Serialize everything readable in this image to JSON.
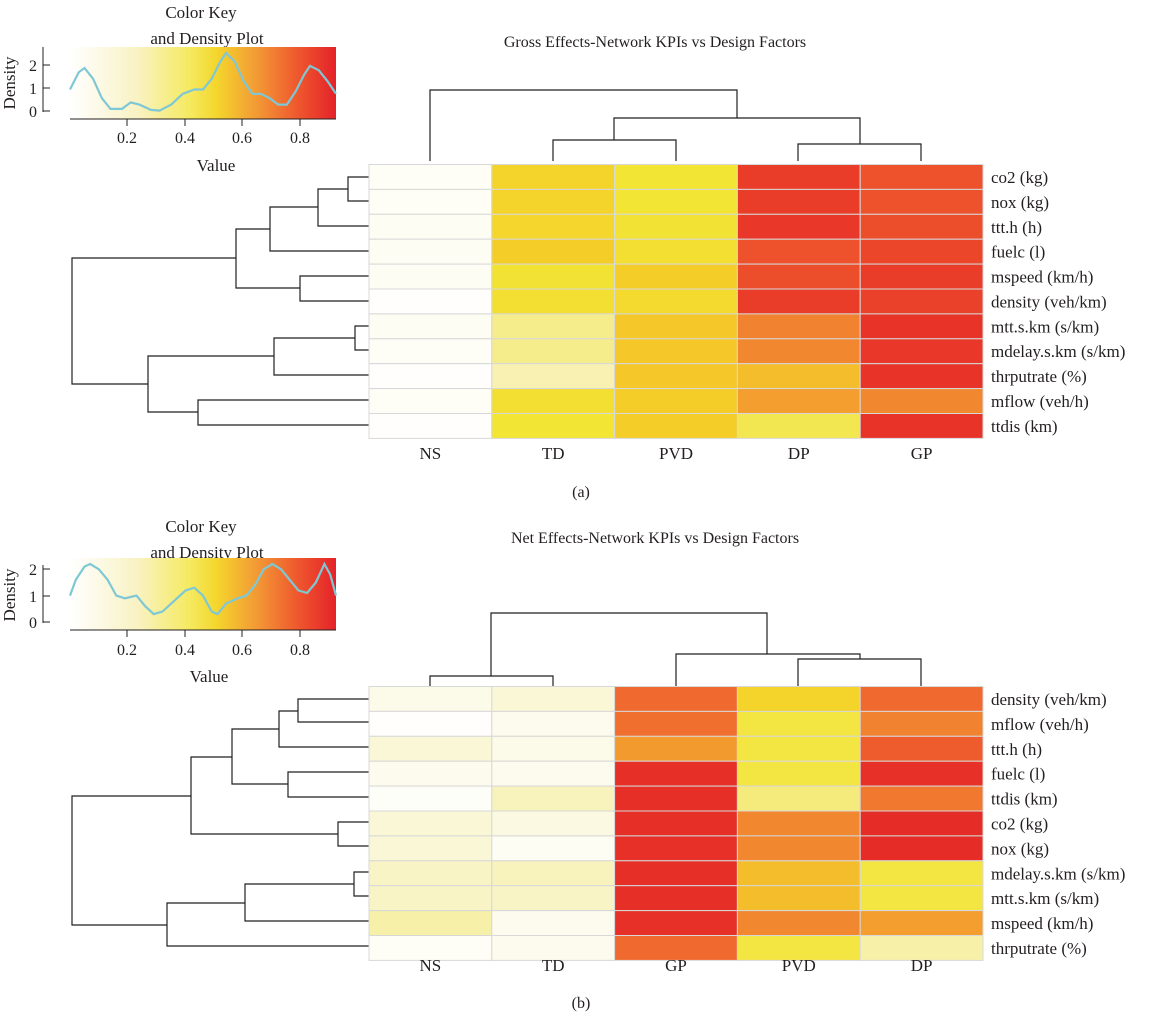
{
  "chart_data": [
    {
      "type": "heatmap",
      "title": "Gross Effects-Network KPIs vs Design Factors",
      "panel_label": "(a)",
      "columns": [
        "NS",
        "TD",
        "PVD",
        "DP",
        "GP"
      ],
      "rows": [
        "co2 (kg)",
        "nox (kg)",
        "ttt.h (h)",
        "fuelc (l)",
        "mspeed (km/h)",
        "density (veh/km)",
        "mtt.s.km (s/km)",
        "mdelay.s.km (s/km)",
        "thrputrate (%)",
        "mflow (veh/h)",
        "ttdis (km)"
      ],
      "values": [
        [
          0.03,
          0.48,
          0.42,
          0.84,
          0.79
        ],
        [
          0.03,
          0.48,
          0.42,
          0.84,
          0.79
        ],
        [
          0.04,
          0.47,
          0.43,
          0.85,
          0.8
        ],
        [
          0.04,
          0.5,
          0.44,
          0.79,
          0.82
        ],
        [
          0.04,
          0.43,
          0.5,
          0.8,
          0.84
        ],
        [
          0.01,
          0.44,
          0.46,
          0.84,
          0.83
        ],
        [
          0.04,
          0.3,
          0.52,
          0.69,
          0.86
        ],
        [
          0.03,
          0.3,
          0.52,
          0.68,
          0.85
        ],
        [
          0.01,
          0.22,
          0.52,
          0.55,
          0.86
        ],
        [
          0.03,
          0.44,
          0.5,
          0.63,
          0.68
        ],
        [
          0.01,
          0.42,
          0.5,
          0.38,
          0.86
        ]
      ],
      "color_key": {
        "title_lines": [
          "Color Key",
          "and Density Plot"
        ],
        "xlabel": "Value",
        "ylabel": "Density",
        "xticks": [
          0.2,
          0.4,
          0.6,
          0.8
        ],
        "yticks": [
          0,
          1,
          2
        ],
        "range": [
          0,
          0.92
        ],
        "density_max": 2.7,
        "density_curve": [
          [
            0,
            1.0
          ],
          [
            0.03,
            1.8
          ],
          [
            0.05,
            2.0
          ],
          [
            0.08,
            1.5
          ],
          [
            0.11,
            0.6
          ],
          [
            0.14,
            0.1
          ],
          [
            0.18,
            0.1
          ],
          [
            0.21,
            0.4
          ],
          [
            0.24,
            0.3
          ],
          [
            0.28,
            0.05
          ],
          [
            0.31,
            0.02
          ],
          [
            0.35,
            0.3
          ],
          [
            0.39,
            0.8
          ],
          [
            0.43,
            1.0
          ],
          [
            0.46,
            1.0
          ],
          [
            0.49,
            1.5
          ],
          [
            0.52,
            2.3
          ],
          [
            0.54,
            2.7
          ],
          [
            0.57,
            2.3
          ],
          [
            0.6,
            1.4
          ],
          [
            0.63,
            0.8
          ],
          [
            0.66,
            0.8
          ],
          [
            0.69,
            0.6
          ],
          [
            0.72,
            0.3
          ],
          [
            0.75,
            0.3
          ],
          [
            0.78,
            0.9
          ],
          [
            0.81,
            1.7
          ],
          [
            0.83,
            2.1
          ],
          [
            0.86,
            1.9
          ],
          [
            0.89,
            1.4
          ],
          [
            0.92,
            0.8
          ]
        ]
      },
      "col_dendrogram": {
        "leaf_order": [
          "NS",
          "TD",
          "PVD",
          "DP",
          "GP"
        ],
        "merges": [
          [
            0.45,
            0.55
          ],
          [
            0.45,
            0.45
          ],
          [
            0.82,
            0.82
          ],
          [
            1.0,
            0.88
          ]
        ]
      },
      "row_dendrogram": {
        "note": "hierarchical clustering of rows"
      }
    },
    {
      "type": "heatmap",
      "title": "Net Effects-Network KPIs vs Design Factors",
      "panel_label": "(b)",
      "columns": [
        "NS",
        "TD",
        "GP",
        "PVD",
        "DP"
      ],
      "rows": [
        "density (veh/km)",
        "mflow (veh/h)",
        "ttt.h (h)",
        "fuelc (l)",
        "ttdis (km)",
        "co2 (kg)",
        "nox (kg)",
        "mdelay.s.km (s/km)",
        "mtt.s.km (s/km)",
        "mspeed (km/h)",
        "thrputrate (%)"
      ],
      "values": [
        [
          0.08,
          0.14,
          0.74,
          0.48,
          0.74
        ],
        [
          0.01,
          0.06,
          0.73,
          0.4,
          0.69
        ],
        [
          0.14,
          0.08,
          0.64,
          0.4,
          0.77
        ],
        [
          0.06,
          0.06,
          0.9,
          0.4,
          0.88
        ],
        [
          0.02,
          0.2,
          0.9,
          0.32,
          0.71
        ],
        [
          0.14,
          0.1,
          0.9,
          0.68,
          0.92
        ],
        [
          0.14,
          0.04,
          0.88,
          0.68,
          0.92
        ],
        [
          0.18,
          0.2,
          0.9,
          0.55,
          0.4
        ],
        [
          0.18,
          0.18,
          0.9,
          0.55,
          0.4
        ],
        [
          0.24,
          0.06,
          0.88,
          0.68,
          0.63
        ],
        [
          0.03,
          0.06,
          0.74,
          0.4,
          0.24
        ]
      ],
      "color_key": {
        "title_lines": [
          "Color Key",
          "and Density Plot"
        ],
        "xlabel": "Value",
        "ylabel": "Density",
        "xticks": [
          0.2,
          0.4,
          0.6,
          0.8
        ],
        "yticks": [
          0,
          1,
          2
        ],
        "range": [
          0,
          0.92
        ],
        "density_max": 2.2,
        "density_curve": [
          [
            0,
            1.0
          ],
          [
            0.02,
            1.6
          ],
          [
            0.05,
            2.1
          ],
          [
            0.07,
            2.2
          ],
          [
            0.1,
            2.0
          ],
          [
            0.13,
            1.6
          ],
          [
            0.16,
            1.0
          ],
          [
            0.19,
            0.9
          ],
          [
            0.23,
            1.0
          ],
          [
            0.26,
            0.6
          ],
          [
            0.29,
            0.3
          ],
          [
            0.32,
            0.4
          ],
          [
            0.36,
            0.8
          ],
          [
            0.4,
            1.2
          ],
          [
            0.43,
            1.3
          ],
          [
            0.46,
            1.0
          ],
          [
            0.49,
            0.4
          ],
          [
            0.51,
            0.3
          ],
          [
            0.54,
            0.7
          ],
          [
            0.58,
            0.9
          ],
          [
            0.61,
            1.0
          ],
          [
            0.64,
            1.4
          ],
          [
            0.67,
            2.0
          ],
          [
            0.7,
            2.2
          ],
          [
            0.73,
            2.0
          ],
          [
            0.76,
            1.6
          ],
          [
            0.79,
            1.2
          ],
          [
            0.82,
            1.1
          ],
          [
            0.85,
            1.5
          ],
          [
            0.88,
            2.2
          ],
          [
            0.9,
            1.8
          ],
          [
            0.92,
            1.0
          ]
        ]
      },
      "col_dendrogram": {
        "leaf_order": [
          "NS",
          "TD",
          "GP",
          "PVD",
          "DP"
        ]
      }
    }
  ]
}
